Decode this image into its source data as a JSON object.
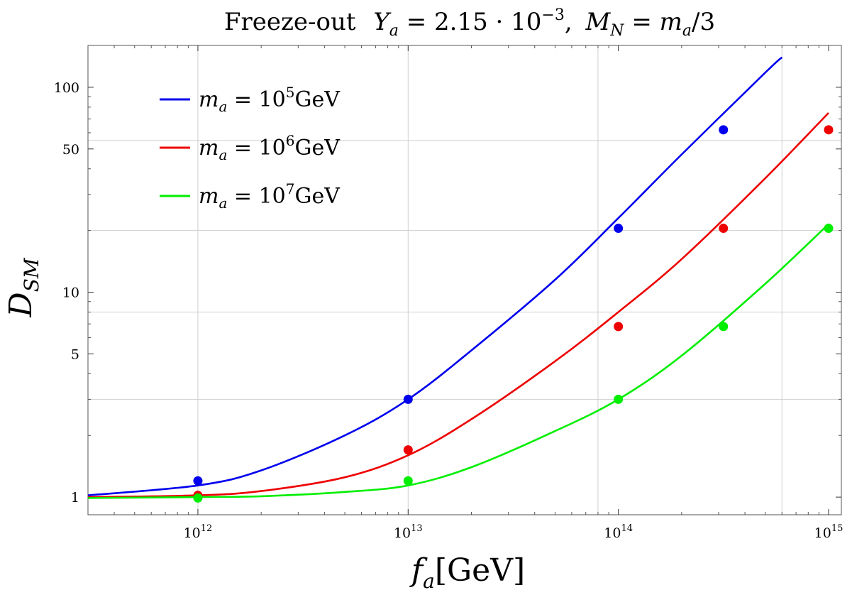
{
  "chart_data": {
    "type": "line",
    "title": "Freeze-out  Y_a = 2.15 · 10^-3 , M_N = m_a/3",
    "title_parts": {
      "prefix": "Freeze-out",
      "ya": "Y",
      "ya_sub": "a",
      "ya_eq": " = 2.15 · 10",
      "ya_exp": "−3",
      "mn": "M",
      "mn_sub": "N",
      "mn_eq": " = m",
      "mn_sub2": "a",
      "mn_end": "/3"
    },
    "xlabel": {
      "var": "f",
      "sub": "a",
      "unit": "[GeV]"
    },
    "ylabel": {
      "var": "D",
      "sub": "SM"
    },
    "x_scale": "log",
    "y_scale": "log",
    "xlim": [
      300000000000.0,
      1150000000000000.0
    ],
    "ylim": [
      0.82,
      160
    ],
    "x_ticks": [
      {
        "value": 1000000000000.0,
        "base": "10",
        "exp": "12"
      },
      {
        "value": 10000000000000.0,
        "base": "10",
        "exp": "13"
      },
      {
        "value": 100000000000000.0,
        "base": "10",
        "exp": "14"
      },
      {
        "value": 1000000000000000.0,
        "base": "10",
        "exp": "15"
      }
    ],
    "y_ticks": [
      {
        "value": 1,
        "label": "1"
      },
      {
        "value": 5,
        "label": "5"
      },
      {
        "value": 10,
        "label": "10"
      },
      {
        "value": 50,
        "label": "50"
      },
      {
        "value": 100,
        "label": "100"
      }
    ],
    "x_grid": [
      1000000000000.0,
      10000000000000.0,
      80000000000000.0,
      600000000000000.0
    ],
    "y_grid": [
      3,
      8,
      20,
      55
    ],
    "legend_position": "top-left",
    "series": [
      {
        "name": "m_a = 10^5 GeV",
        "legend": {
          "var": "m",
          "sub": "a",
          "eq": " = 10",
          "exp": "5",
          "unit": "GeV"
        },
        "color": "#0000ee",
        "curve": {
          "x": [
            300000000000.0,
            1000000000000.0,
            2000000000000.0,
            5000000000000.0,
            10000000000000.0,
            20000000000000.0,
            50000000000000.0,
            100000000000000.0,
            200000000000000.0,
            500000000000000.0,
            600000000000000.0
          ],
          "y": [
            1.02,
            1.14,
            1.35,
            2.0,
            3.0,
            5.2,
            11.5,
            23,
            47,
            118,
            140
          ]
        },
        "points": {
          "x": [
            1000000000000.0,
            10000000000000.0,
            100000000000000.0,
            316000000000000.0
          ],
          "y": [
            1.2,
            3.0,
            20.5,
            62
          ]
        }
      },
      {
        "name": "m_a = 10^6 GeV",
        "legend": {
          "var": "m",
          "sub": "a",
          "eq": " = 10",
          "exp": "6",
          "unit": "GeV"
        },
        "color": "#ee0000",
        "curve": {
          "x": [
            300000000000.0,
            1000000000000.0,
            2000000000000.0,
            5000000000000.0,
            10000000000000.0,
            20000000000000.0,
            50000000000000.0,
            100000000000000.0,
            200000000000000.0,
            500000000000000.0,
            1000000000000000.0
          ],
          "y": [
            1.0,
            1.02,
            1.07,
            1.25,
            1.6,
            2.4,
            4.6,
            8.0,
            14.5,
            36,
            75
          ]
        },
        "points": {
          "x": [
            1000000000000.0,
            10000000000000.0,
            100000000000000.0,
            316000000000000.0,
            1000000000000000.0
          ],
          "y": [
            1.02,
            1.7,
            6.8,
            20.5,
            62
          ]
        }
      },
      {
        "name": "m_a = 10^7 GeV",
        "legend": {
          "var": "m",
          "sub": "a",
          "eq": " = 10",
          "exp": "7",
          "unit": "GeV"
        },
        "color": "#00ee00",
        "curve": {
          "x": [
            300000000000.0,
            1000000000000.0,
            2000000000000.0,
            5000000000000.0,
            10000000000000.0,
            20000000000000.0,
            50000000000000.0,
            100000000000000.0,
            200000000000000.0,
            500000000000000.0,
            1000000000000000.0
          ],
          "y": [
            0.99,
            1.0,
            1.01,
            1.06,
            1.14,
            1.4,
            2.1,
            3.0,
            4.9,
            11,
            21.5
          ]
        },
        "points": {
          "x": [
            1000000000000.0,
            10000000000000.0,
            100000000000000.0,
            316000000000000.0,
            1000000000000000.0
          ],
          "y": [
            0.99,
            1.2,
            3.0,
            6.8,
            20.5
          ]
        }
      }
    ]
  }
}
